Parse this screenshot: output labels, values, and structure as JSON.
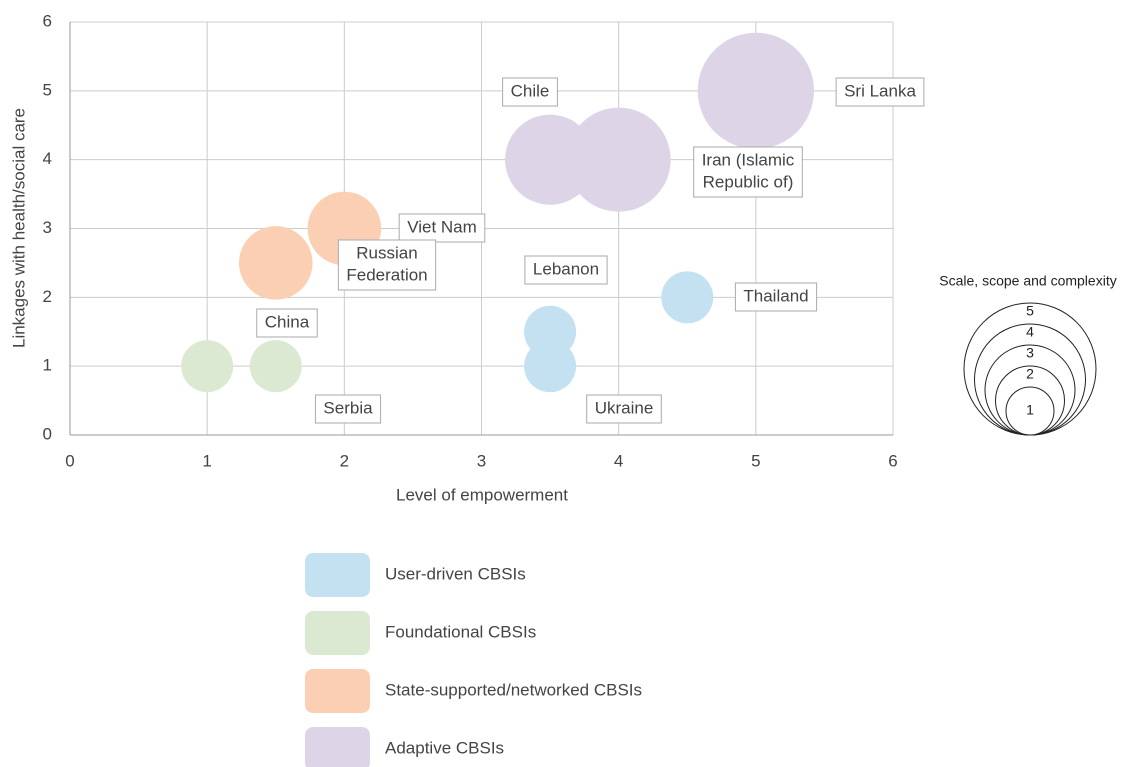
{
  "chart_data": {
    "type": "bubble",
    "xlabel": "Level of empowerment",
    "ylabel": "Linkages with health/social care",
    "xlim": [
      0,
      6
    ],
    "xticks": [
      0,
      1,
      2,
      3,
      4,
      5,
      6
    ],
    "ylim": [
      0,
      6
    ],
    "yticks": [
      0,
      1,
      2,
      3,
      4,
      5,
      6
    ],
    "grid": true,
    "series": [
      {
        "name": "User-driven CBSIs",
        "color": "#c3e1f1",
        "x": [
          3.5,
          3.5,
          4.5
        ],
        "y": [
          1.5,
          1,
          2
        ],
        "sizes": [
          1,
          1,
          1
        ],
        "labels": [
          [
            "Lebanon"
          ],
          [
            "Ukraine"
          ],
          [
            "Thailand"
          ]
        ]
      },
      {
        "name": "Foundational CBSIs",
        "color": "#dbe9d3",
        "x": [
          1,
          1.5
        ],
        "y": [
          1,
          1
        ],
        "sizes": [
          1,
          1
        ],
        "labels": [
          [
            "China"
          ],
          [
            "Serbia"
          ]
        ]
      },
      {
        "name": "State-supported/networked CBSIs",
        "color": "#fbcfb3",
        "x": [
          2,
          1.5
        ],
        "y": [
          3,
          2.5
        ],
        "sizes": [
          2,
          2
        ],
        "labels": [
          [
            "Viet Nam"
          ],
          [
            "Russian",
            "Federation"
          ]
        ]
      },
      {
        "name": "Adaptive CBSIs",
        "color": "#ddd4e7",
        "x": [
          3.5,
          4,
          5
        ],
        "y": [
          4,
          4,
          5
        ],
        "sizes": [
          3,
          4,
          5
        ],
        "labels": [
          [
            "Chile"
          ],
          [
            "Iran (Islamic",
            "Republic of)"
          ],
          [
            "Sri Lanka"
          ]
        ]
      }
    ],
    "size_legend": {
      "title": "Scale, scope and complexity",
      "sizes": [
        1,
        2,
        3,
        4,
        5
      ]
    }
  }
}
